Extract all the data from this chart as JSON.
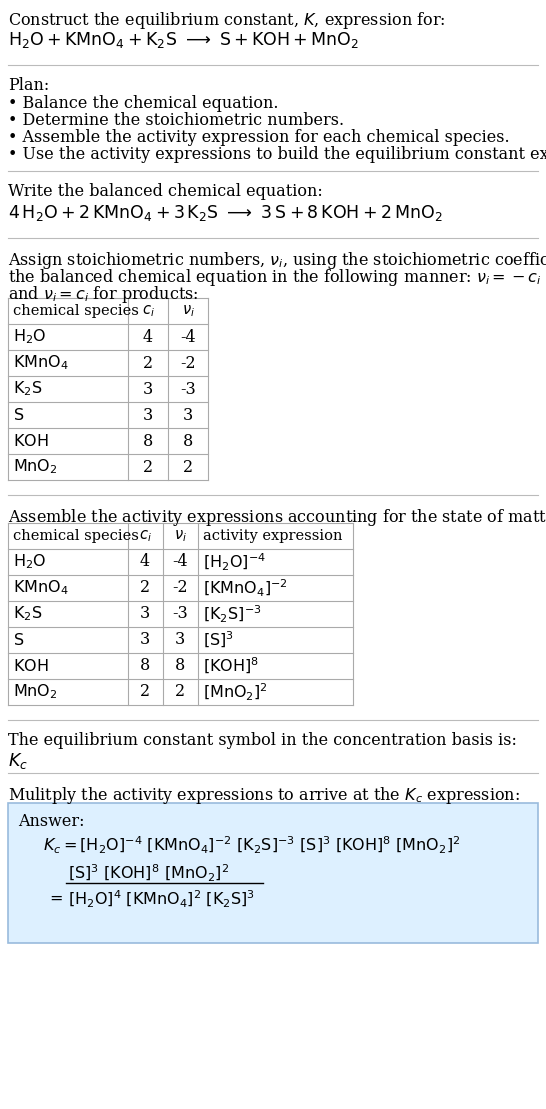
{
  "bg_color": "#ffffff",
  "text_color": "#000000",
  "border_color": "#aaaaaa",
  "answer_box_color": "#ddf0ff",
  "answer_box_border": "#99bbdd",
  "font_size": 11.5,
  "small_font": 10.5,
  "species_latex": [
    "$\\mathrm{H_2O}$",
    "$\\mathrm{KMnO_4}$",
    "$\\mathrm{K_2S}$",
    "$\\mathrm{S}$",
    "$\\mathrm{KOH}$",
    "$\\mathrm{MnO_2}$"
  ],
  "ci_vals": [
    "4",
    "2",
    "3",
    "3",
    "8",
    "2"
  ],
  "nui_vals": [
    "-4",
    "-2",
    "-3",
    "3",
    "8",
    "2"
  ],
  "act_expr": [
    "$[\\mathrm{H_2O}]^{-4}$",
    "$[\\mathrm{KMnO_4}]^{-2}$",
    "$[\\mathrm{K_2S}]^{-3}$",
    "$[\\mathrm{S}]^{3}$",
    "$[\\mathrm{KOH}]^{8}$",
    "$[\\mathrm{MnO_2}]^{2}$"
  ]
}
